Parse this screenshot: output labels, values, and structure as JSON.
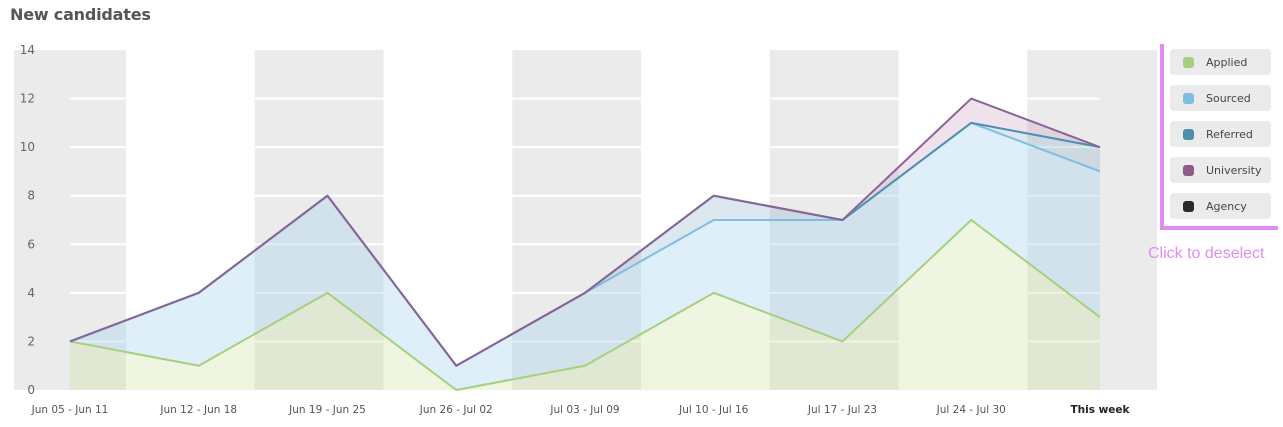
{
  "title": "New candidates",
  "hint": "Click to deselect",
  "colors": {
    "applied": "#a8cf7e",
    "sourced": "#7cbfe2",
    "referred": "#4f8fae",
    "university": "#8e5a86",
    "agency": "#2a2a2a",
    "band": "#ebebeb",
    "bracket": "#e08cf2"
  },
  "legend": [
    {
      "label": "Applied",
      "color": "#a8cf7e"
    },
    {
      "label": "Sourced",
      "color": "#7cbfe2"
    },
    {
      "label": "Referred",
      "color": "#4f8fae"
    },
    {
      "label": "University",
      "color": "#8e5a86"
    },
    {
      "label": "Agency",
      "color": "#2a2a2a"
    }
  ],
  "chart_data": {
    "type": "area",
    "stacked": true,
    "title": "New candidates",
    "xlabel": "",
    "ylabel": "",
    "ylim": [
      0,
      14
    ],
    "yticks": [
      0,
      2,
      4,
      6,
      8,
      10,
      12,
      14
    ],
    "categories": [
      "Jun 05 - Jun 11",
      "Jun 12 - Jun 18",
      "Jun 19 - Jun 25",
      "Jun 26 - Jul 02",
      "Jul 03 - Jul 09",
      "Jul 10 - Jul 16",
      "Jul 17 - Jul 23",
      "Jul 24 - Jul 30",
      "This week"
    ],
    "series": [
      {
        "name": "Applied",
        "values": [
          2,
          1,
          4,
          0,
          1,
          4,
          2,
          7,
          3
        ]
      },
      {
        "name": "Sourced",
        "values": [
          0,
          3,
          4,
          1,
          3,
          3,
          5,
          4,
          6
        ]
      },
      {
        "name": "Referred",
        "values": [
          0,
          0,
          0,
          0,
          0,
          1,
          0,
          0,
          1
        ]
      },
      {
        "name": "University",
        "values": [
          0,
          0,
          0,
          0,
          0,
          0,
          0,
          1,
          0
        ]
      },
      {
        "name": "Agency",
        "values": [
          0,
          0,
          0,
          0,
          0,
          0,
          0,
          0,
          0
        ]
      }
    ],
    "grid": true,
    "legend_position": "right"
  }
}
